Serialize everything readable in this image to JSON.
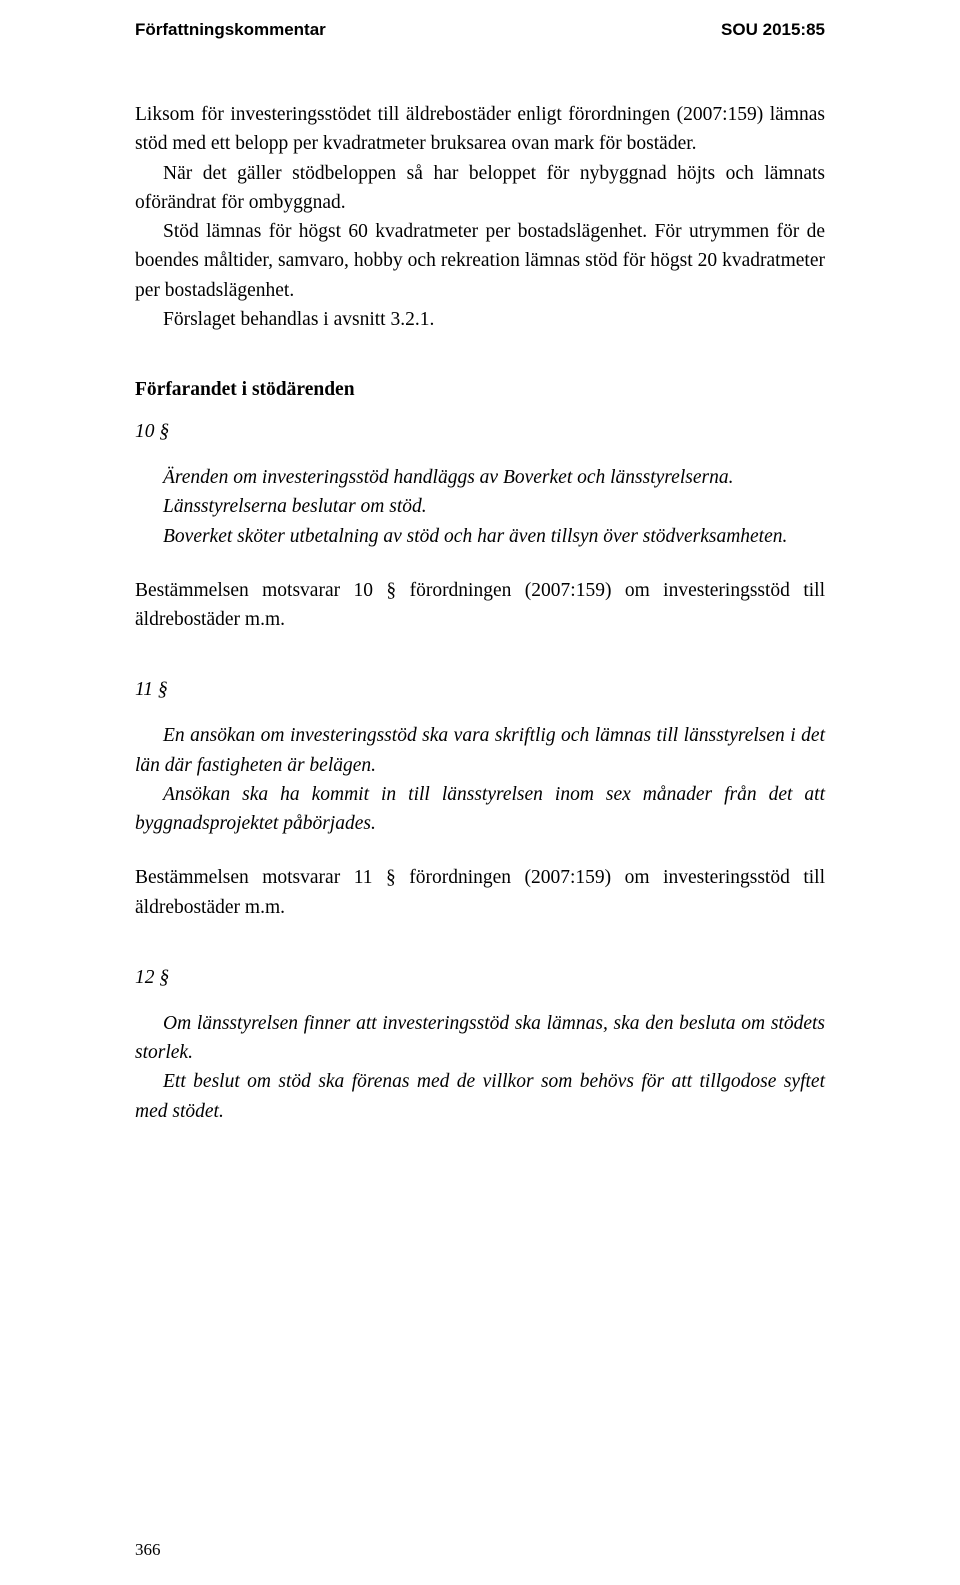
{
  "header": {
    "left": "Författningskommentar",
    "right": "SOU 2015:85"
  },
  "intro": {
    "p1": "Liksom för investeringsstödet till äldrebostäder enligt förordningen (2007:159) lämnas stöd med ett belopp per kvadratmeter bruksarea ovan mark för bostäder.",
    "p2": "När det gäller stödbeloppen så har beloppet för nybyggnad höjts och lämnats oförändrat för ombyggnad.",
    "p3": "Stöd lämnas för högst 60 kvadratmeter per bostadslägenhet. För utrymmen för de boendes måltider, samvaro, hobby och rekreation lämnas stöd för högst 20 kvadratmeter per bostadslägenhet.",
    "p4": "Förslaget behandlas i avsnitt 3.2.1."
  },
  "section1": {
    "heading": "Förfarandet i stödärenden",
    "number": "10 §",
    "italic_p1": "Ärenden om investeringsstöd handläggs av Boverket och länsstyrelserna.",
    "italic_p2": "Länsstyrelserna beslutar om stöd.",
    "italic_p3": "Boverket sköter utbetalning av stöd och har även tillsyn över stödverksamheten.",
    "body": "Bestämmelsen motsvarar 10 § förordningen (2007:159) om investeringsstöd till äldrebostäder m.m."
  },
  "section2": {
    "number": "11 §",
    "italic_p1": "En ansökan om investeringsstöd ska vara skriftlig och lämnas till länsstyrelsen i det län där fastigheten är belägen.",
    "italic_p2": "Ansökan ska ha kommit in till länsstyrelsen inom sex månader från det att byggnadsprojektet påbörjades.",
    "body": "Bestämmelsen motsvarar 11 § förordningen (2007:159) om investeringsstöd till äldrebostäder m.m."
  },
  "section3": {
    "number": "12 §",
    "italic_p1": "Om länsstyrelsen finner att investeringsstöd ska lämnas, ska den besluta om stödets storlek.",
    "italic_p2": "Ett beslut om stöd ska förenas med de villkor som behövs för att tillgodose syftet med stödet."
  },
  "page_number": "366"
}
